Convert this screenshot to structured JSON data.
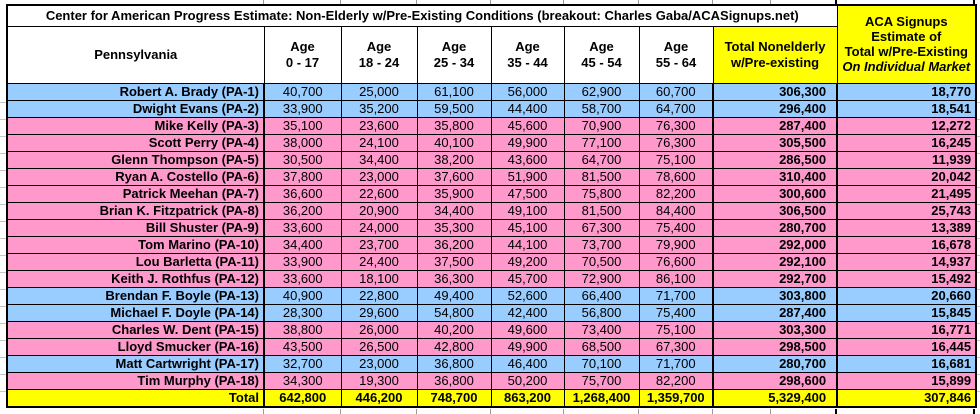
{
  "sheet": {
    "title": "Center for American Progress Estimate: Non-Elderly w/Pre-Existing Conditions (breakout: Charles Gaba/ACASignups.net)",
    "state": "Pennsylvania",
    "age_columns": [
      {
        "line1": "Age",
        "line2": "0 - 17"
      },
      {
        "line1": "Age",
        "line2": "18 - 24"
      },
      {
        "line1": "Age",
        "line2": "25 - 34"
      },
      {
        "line1": "Age",
        "line2": "35 - 44"
      },
      {
        "line1": "Age",
        "line2": "45 - 54"
      },
      {
        "line1": "Age",
        "line2": "55 - 64"
      }
    ],
    "total_column": {
      "line1": "Total Nonelderly",
      "line2": "w/Pre-existing"
    },
    "aca_column": {
      "line1": "ACA Signups",
      "line2": "Estimate of",
      "line3": "Total w/Pre-Existing",
      "line4": "On Individual Market"
    },
    "rows": [
      {
        "name": "Robert A. Brady (PA-1)",
        "highlight": "blue",
        "values": [
          "40,700",
          "25,000",
          "61,100",
          "56,000",
          "62,900",
          "60,700"
        ],
        "total": "306,300",
        "aca": "18,770"
      },
      {
        "name": "Dwight Evans (PA-2)",
        "highlight": "blue",
        "values": [
          "33,900",
          "35,200",
          "59,500",
          "44,400",
          "58,700",
          "64,700"
        ],
        "total": "296,400",
        "aca": "18,541"
      },
      {
        "name": "Mike Kelly (PA-3)",
        "highlight": "pink",
        "values": [
          "35,100",
          "23,600",
          "35,800",
          "45,600",
          "70,900",
          "76,300"
        ],
        "total": "287,400",
        "aca": "12,272"
      },
      {
        "name": "Scott Perry (PA-4)",
        "highlight": "pink",
        "values": [
          "38,000",
          "24,100",
          "40,100",
          "49,900",
          "77,100",
          "76,300"
        ],
        "total": "305,500",
        "aca": "16,245"
      },
      {
        "name": "Glenn Thompson (PA-5)",
        "highlight": "pink",
        "values": [
          "30,500",
          "34,400",
          "38,200",
          "43,600",
          "64,700",
          "75,100"
        ],
        "total": "286,500",
        "aca": "11,939"
      },
      {
        "name": "Ryan A. Costello (PA-6)",
        "highlight": "pink",
        "values": [
          "37,800",
          "23,000",
          "37,600",
          "51,900",
          "81,500",
          "78,600"
        ],
        "total": "310,400",
        "aca": "20,042"
      },
      {
        "name": "Patrick Meehan (PA-7)",
        "highlight": "pink",
        "values": [
          "36,600",
          "22,600",
          "35,900",
          "47,500",
          "75,800",
          "82,200"
        ],
        "total": "300,600",
        "aca": "21,495"
      },
      {
        "name": "Brian K. Fitzpatrick (PA-8)",
        "highlight": "pink",
        "values": [
          "36,200",
          "20,900",
          "34,400",
          "49,100",
          "81,500",
          "84,400"
        ],
        "total": "306,500",
        "aca": "25,743"
      },
      {
        "name": "Bill Shuster (PA-9)",
        "highlight": "pink",
        "values": [
          "33,600",
          "24,000",
          "35,300",
          "45,100",
          "67,300",
          "75,400"
        ],
        "total": "280,700",
        "aca": "13,389"
      },
      {
        "name": "Tom Marino (PA-10)",
        "highlight": "pink",
        "values": [
          "34,400",
          "23,700",
          "36,200",
          "44,100",
          "73,700",
          "79,900"
        ],
        "total": "292,000",
        "aca": "16,678"
      },
      {
        "name": "Lou Barletta (PA-11)",
        "highlight": "pink",
        "values": [
          "33,900",
          "24,400",
          "37,500",
          "49,200",
          "70,500",
          "76,600"
        ],
        "total": "292,100",
        "aca": "14,937"
      },
      {
        "name": "Keith J. Rothfus (PA-12)",
        "highlight": "pink",
        "values": [
          "33,600",
          "18,100",
          "36,300",
          "45,700",
          "72,900",
          "86,100"
        ],
        "total": "292,700",
        "aca": "15,492"
      },
      {
        "name": "Brendan F. Boyle (PA-13)",
        "highlight": "blue",
        "values": [
          "40,900",
          "22,800",
          "49,400",
          "52,600",
          "66,400",
          "71,700"
        ],
        "total": "303,800",
        "aca": "20,660"
      },
      {
        "name": "Michael F. Doyle (PA-14)",
        "highlight": "blue",
        "values": [
          "28,300",
          "29,600",
          "54,800",
          "42,400",
          "56,800",
          "75,400"
        ],
        "total": "287,400",
        "aca": "15,845"
      },
      {
        "name": "Charles W. Dent (PA-15)",
        "highlight": "pink",
        "values": [
          "38,800",
          "26,000",
          "40,200",
          "49,600",
          "73,400",
          "75,100"
        ],
        "total": "303,300",
        "aca": "16,771"
      },
      {
        "name": "Lloyd Smucker (PA-16)",
        "highlight": "pink",
        "values": [
          "43,500",
          "26,500",
          "42,800",
          "49,900",
          "68,500",
          "67,300"
        ],
        "total": "298,500",
        "aca": "16,445"
      },
      {
        "name": "Matt Cartwright (PA-17)",
        "highlight": "blue",
        "values": [
          "32,700",
          "23,000",
          "36,800",
          "46,400",
          "70,100",
          "71,700"
        ],
        "total": "280,700",
        "aca": "16,681"
      },
      {
        "name": "Tim Murphy (PA-18)",
        "highlight": "pink",
        "values": [
          "34,300",
          "19,300",
          "36,800",
          "50,200",
          "75,700",
          "82,200"
        ],
        "total": "298,600",
        "aca": "15,899"
      }
    ],
    "total_row": {
      "label": "Total",
      "values": [
        "642,800",
        "446,200",
        "748,700",
        "863,200",
        "1,268,400",
        "1,359,700"
      ],
      "total": "5,329,400",
      "aca": "307,846"
    },
    "colors": {
      "democrat_blue": "#99CCFF",
      "republican_pink": "#FF99CC",
      "highlight_yellow": "#FFFF00"
    }
  }
}
